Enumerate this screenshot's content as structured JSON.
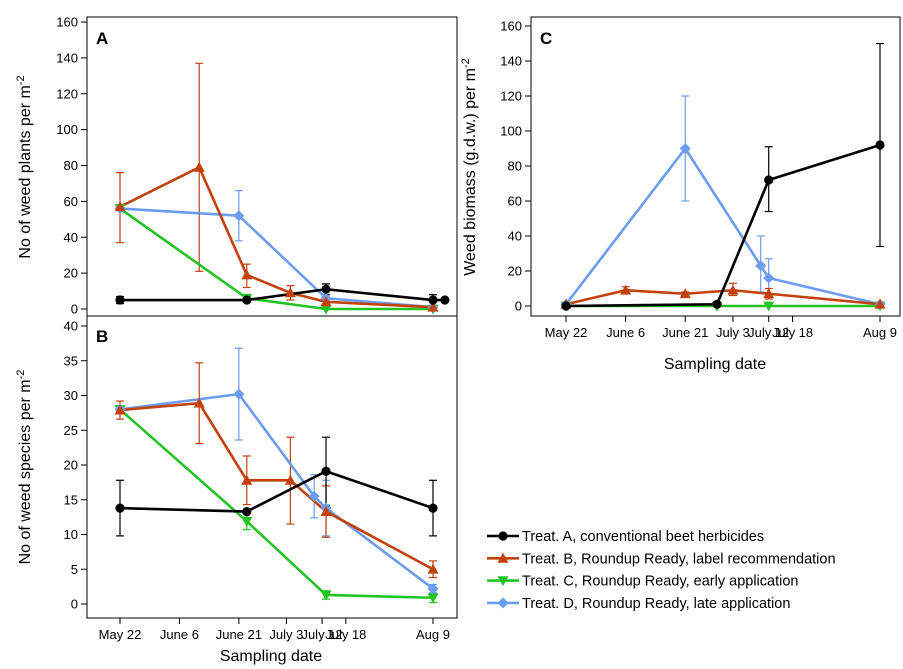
{
  "x_dates": [
    "May 22",
    "June 6",
    "June 21",
    "July 3",
    "July 12",
    "July 18",
    "Aug 9"
  ],
  "series": [
    {
      "id": "A",
      "name": "Treat. A, conventional beet herbicides",
      "color": "#000000",
      "marker": "circle"
    },
    {
      "id": "B",
      "name": "Treat. B, Roundup Ready, label recommendation",
      "color": "#c2410c",
      "marker": "triangle-up"
    },
    {
      "id": "C",
      "name": "Treat. C, Roundup Ready, early application",
      "color": "#22c422",
      "marker": "triangle-down"
    },
    {
      "id": "D",
      "name": "Treat. D, Roundup Ready, late application",
      "color": "#6b9cf0",
      "marker": "diamond"
    }
  ],
  "chart_data": [
    {
      "panel": "A",
      "type": "line",
      "ylabel_main": "No of weed plants per m",
      "ylabel_sup": "-2",
      "ylim": [
        0,
        160
      ],
      "yticks": [
        0,
        20,
        40,
        60,
        80,
        100,
        120,
        140,
        160
      ],
      "series": [
        {
          "id": "A",
          "points": [
            {
              "x": "May 22",
              "y": 5,
              "lo": 3,
              "hi": 7
            },
            {
              "x": "June 23",
              "y": 5,
              "lo": 4,
              "hi": 6
            },
            {
              "x": "July 13",
              "y": 11,
              "lo": 8,
              "hi": 14
            },
            {
              "x": "Aug 9",
              "y": 5,
              "lo": 2,
              "hi": 8
            },
            {
              "x": "Aug 12",
              "y": 5
            }
          ]
        },
        {
          "id": "B",
          "points": [
            {
              "x": "May 22",
              "y": 57,
              "lo": 37,
              "hi": 76
            },
            {
              "x": "June 11",
              "y": 79,
              "lo": 21,
              "hi": 137
            },
            {
              "x": "June 23",
              "y": 19,
              "lo": 12,
              "hi": 25
            },
            {
              "x": "July 4",
              "y": 9,
              "lo": 5,
              "hi": 13
            },
            {
              "x": "July 13",
              "y": 4,
              "lo": 2,
              "hi": 6
            },
            {
              "x": "Aug 9",
              "y": 1,
              "lo": 0,
              "hi": 2
            }
          ]
        },
        {
          "id": "C",
          "points": [
            {
              "x": "May 22",
              "y": 56
            },
            {
              "x": "June 23",
              "y": 6
            },
            {
              "x": "July 13",
              "y": 0
            },
            {
              "x": "Aug 9",
              "y": 0
            }
          ]
        },
        {
          "id": "D",
          "points": [
            {
              "x": "May 22",
              "y": 56
            },
            {
              "x": "June 21",
              "y": 52,
              "lo": 38,
              "hi": 66
            },
            {
              "x": "July 13",
              "y": 6,
              "lo": 2,
              "hi": 14
            },
            {
              "x": "Aug 9",
              "y": 1
            }
          ]
        }
      ]
    },
    {
      "panel": "B",
      "type": "line",
      "ylabel_main": "No of weed species per m",
      "ylabel_sup": "-2",
      "xlabel": "Sampling date",
      "ylim": [
        0,
        40
      ],
      "yticks": [
        0,
        5,
        10,
        15,
        20,
        25,
        30,
        35,
        40
      ],
      "series": [
        {
          "id": "A",
          "points": [
            {
              "x": "May 22",
              "y": 13.8,
              "lo": 9.8,
              "hi": 17.8
            },
            {
              "x": "June 23",
              "y": 13.3
            },
            {
              "x": "July 13",
              "y": 19.1,
              "lo": 14.2,
              "hi": 24.0
            },
            {
              "x": "Aug 9",
              "y": 13.8,
              "lo": 9.8,
              "hi": 17.8
            }
          ]
        },
        {
          "id": "B",
          "points": [
            {
              "x": "May 22",
              "y": 27.9,
              "lo": 26.6,
              "hi": 29.2
            },
            {
              "x": "June 11",
              "y": 28.9,
              "lo": 23.1,
              "hi": 34.7
            },
            {
              "x": "June 23",
              "y": 17.8,
              "lo": 14.3,
              "hi": 21.3
            },
            {
              "x": "July 4",
              "y": 17.8,
              "lo": 11.5,
              "hi": 24.0
            },
            {
              "x": "July 13",
              "y": 13.3,
              "lo": 9.6,
              "hi": 17.0
            },
            {
              "x": "Aug 9",
              "y": 5.0,
              "lo": 3.8,
              "hi": 6.2
            }
          ]
        },
        {
          "id": "C",
          "points": [
            {
              "x": "May 22",
              "y": 28.0
            },
            {
              "x": "June 23",
              "y": 11.9,
              "lo": 10.7,
              "hi": 13.1
            },
            {
              "x": "July 13",
              "y": 1.3,
              "lo": 0.7,
              "hi": 1.9
            },
            {
              "x": "Aug 9",
              "y": 0.9,
              "lo": 0.2,
              "hi": 1.6
            }
          ]
        },
        {
          "id": "D",
          "points": [
            {
              "x": "May 22",
              "y": 28.0
            },
            {
              "x": "June 21",
              "y": 30.2,
              "lo": 23.6,
              "hi": 36.8
            },
            {
              "x": "July 10",
              "y": 15.5,
              "lo": 12.4,
              "hi": 18.6
            },
            {
              "x": "July 13",
              "y": 13.8,
              "lo": 9.8,
              "hi": 17.8
            },
            {
              "x": "Aug 9",
              "y": 2.2,
              "lo": 1.6,
              "hi": 2.8
            }
          ]
        }
      ]
    },
    {
      "panel": "C",
      "type": "line",
      "ylabel_main": "Weed biomass (g.d.w.) per m",
      "ylabel_sup": "-2",
      "xlabel": "Sampling date",
      "ylim": [
        0,
        160
      ],
      "yticks": [
        0,
        20,
        40,
        60,
        80,
        100,
        120,
        140,
        160
      ],
      "series": [
        {
          "id": "A",
          "points": [
            {
              "x": "May 22",
              "y": 0
            },
            {
              "x": "June 29",
              "y": 1
            },
            {
              "x": "July 12",
              "y": 72,
              "lo": 54,
              "hi": 91
            },
            {
              "x": "Aug 9",
              "y": 92,
              "lo": 34,
              "hi": 150
            }
          ]
        },
        {
          "id": "B",
          "points": [
            {
              "x": "May 22",
              "y": 1
            },
            {
              "x": "June 6",
              "y": 9,
              "lo": 7,
              "hi": 11
            },
            {
              "x": "June 21",
              "y": 7,
              "lo": 6,
              "hi": 8
            },
            {
              "x": "July 3",
              "y": 9,
              "lo": 6,
              "hi": 13
            },
            {
              "x": "July 12",
              "y": 7,
              "lo": 4,
              "hi": 10
            },
            {
              "x": "Aug 9",
              "y": 1
            }
          ]
        },
        {
          "id": "C",
          "points": [
            {
              "x": "May 22",
              "y": 0
            },
            {
              "x": "June 29",
              "y": 0
            },
            {
              "x": "July 12",
              "y": 0
            },
            {
              "x": "Aug 9",
              "y": 0
            }
          ]
        },
        {
          "id": "D",
          "points": [
            {
              "x": "May 22",
              "y": 1
            },
            {
              "x": "June 21",
              "y": 90,
              "lo": 60,
              "hi": 120
            },
            {
              "x": "July 10",
              "y": 23,
              "lo": 8,
              "hi": 40
            },
            {
              "x": "July 12",
              "y": 16,
              "lo": 5,
              "hi": 27
            },
            {
              "x": "Aug 9",
              "y": 1
            }
          ]
        }
      ]
    }
  ]
}
